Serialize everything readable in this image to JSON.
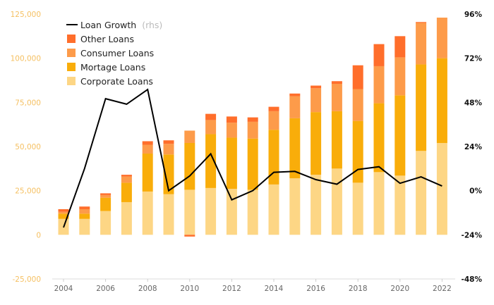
{
  "chart_data": {
    "type": "bar",
    "stacked": true,
    "categories": [
      "2004",
      "2005",
      "2006",
      "2007",
      "2008",
      "2009",
      "2010",
      "2011",
      "2012",
      "2013",
      "2014",
      "2015",
      "2016",
      "2017",
      "2018",
      "2019",
      "2020",
      "2021",
      "2022"
    ],
    "x_tick_labels": [
      "2004",
      "2006",
      "2008",
      "2010",
      "2012",
      "2014",
      "2016",
      "2018",
      "2020",
      "2022"
    ],
    "series": [
      {
        "name": "Corporate Loans",
        "color": "#fdd685",
        "values": [
          9000,
          9000,
          13500,
          18500,
          24500,
          23000,
          25500,
          26500,
          26000,
          25500,
          28500,
          32000,
          34000,
          37500,
          29500,
          35500,
          33500,
          47500,
          52000
        ]
      },
      {
        "name": "Mortage Loans",
        "color": "#f9ad0a",
        "values": [
          3000,
          3000,
          7500,
          11000,
          21500,
          22500,
          26500,
          30500,
          29000,
          29000,
          31000,
          34000,
          35500,
          32500,
          35000,
          39000,
          45500,
          49000,
          48000
        ]
      },
      {
        "name": "Consumer Loans",
        "color": "#fd9b4a",
        "values": [
          1000,
          2500,
          1500,
          3500,
          5000,
          6000,
          7000,
          8000,
          8500,
          9500,
          10500,
          12500,
          13500,
          15500,
          18000,
          21000,
          21500,
          23500,
          23000
        ]
      },
      {
        "name": "Other Loans",
        "color": "#ff6e2b",
        "values": [
          1500,
          1500,
          1000,
          1000,
          2000,
          2000,
          -1000,
          3500,
          3500,
          2500,
          2500,
          1500,
          1500,
          1500,
          13500,
          12500,
          12000,
          500,
          0
        ]
      }
    ],
    "line_series": {
      "name": "Loan Growth",
      "axis_note": "(rhs)",
      "color": "#000000",
      "values": [
        -20,
        12,
        50,
        47,
        55,
        0,
        8,
        20,
        -5,
        0,
        10,
        10.5,
        6,
        3.5,
        11.5,
        13,
        4,
        7.5,
        2.5
      ]
    },
    "y_left": {
      "min": -25000,
      "max": 125000,
      "step": 25000,
      "tick_labels": [
        "-25,000",
        "0",
        "25,000",
        "50,000",
        "75,000",
        "100,000",
        "125,000"
      ]
    },
    "y_right": {
      "min": -48,
      "max": 96,
      "step": 24,
      "tick_labels": [
        "-48%",
        "-24%",
        "0%",
        "24%",
        "48%",
        "72%",
        "96%"
      ]
    },
    "legend_position": "top-left",
    "grid": false
  }
}
